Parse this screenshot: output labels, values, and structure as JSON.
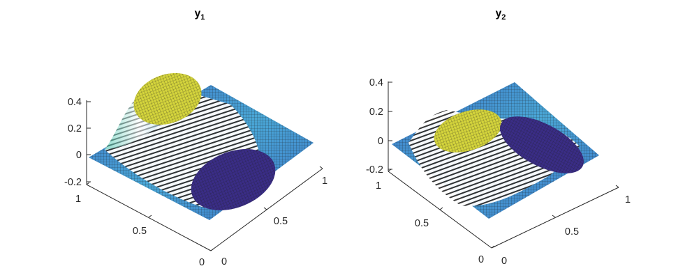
{
  "figure": {
    "background": "#ffffff",
    "colormap": [
      "#3e2a8c",
      "#3a57c9",
      "#3e9bd8",
      "#3dc0a8",
      "#8fcb60",
      "#e6d34a",
      "#e8e03c"
    ]
  },
  "chart_data": [
    {
      "type": "surface",
      "title_base": "y",
      "title_sub": "1",
      "x_ticks": [
        "0",
        "0.5",
        "1"
      ],
      "y_ticks": [
        "0",
        "0.5",
        "1"
      ],
      "z_ticks": [
        "-0.2",
        "0",
        "0.2",
        "0.4"
      ],
      "xlim": [
        0,
        1
      ],
      "ylim": [
        0,
        1
      ],
      "zlim": [
        -0.2,
        0.4
      ],
      "surface": {
        "description": "saturated bump: positive plateau near (x=0.25, y=0.75) clipped at 0.4, negative trough near (x=0.75, y=0.25)",
        "peak": {
          "x": 0.28,
          "y": 0.72,
          "z": 0.4
        },
        "trough": {
          "x": 0.72,
          "y": 0.28,
          "z": -0.2
        }
      }
    },
    {
      "type": "surface",
      "title_base": "y",
      "title_sub": "2",
      "x_ticks": [
        "0",
        "0.5",
        "1"
      ],
      "y_ticks": [
        "0",
        "0.5",
        "1"
      ],
      "z_ticks": [
        "-0.2",
        "0",
        "0.2",
        "0.4"
      ],
      "xlim": [
        0,
        1
      ],
      "ylim": [
        0,
        1
      ],
      "zlim": [
        -0.2,
        0.4
      ],
      "surface": {
        "description": "saturated bump: positive plateau near (x=0.3, y=0.7) and negative trough near (x=0.7, y=0.4)",
        "peak": {
          "x": 0.3,
          "y": 0.7,
          "z": 0.2
        },
        "trough": {
          "x": 0.7,
          "y": 0.4,
          "z": -0.2
        }
      }
    }
  ]
}
